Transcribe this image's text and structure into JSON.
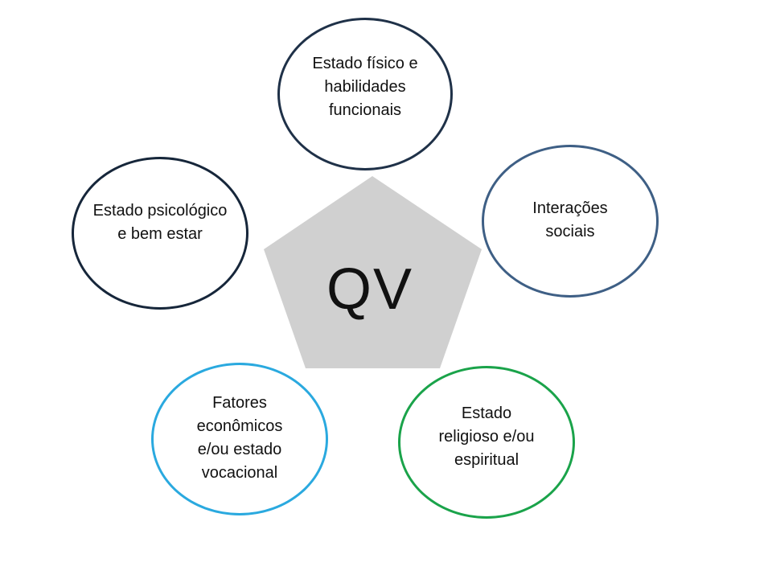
{
  "center": {
    "label": "QV",
    "fill": "#d0d0d0"
  },
  "nodes": [
    {
      "id": "physical",
      "label": "Estado físico e\nhabilidades\nfuncionais",
      "border_color": "#1f3148"
    },
    {
      "id": "social",
      "label": "Interações\nsociais",
      "border_color": "#3e5f85"
    },
    {
      "id": "spiritual",
      "label": "Estado\nreligioso e/ou\nespiritual",
      "border_color": "#1aa34a"
    },
    {
      "id": "economic",
      "label": "Fatores\neconômicos\ne/ou estado\nvocacional",
      "border_color": "#2aa9df"
    },
    {
      "id": "psych",
      "label": "Estado psicológico\ne bem estar",
      "border_color": "#16263a"
    }
  ]
}
